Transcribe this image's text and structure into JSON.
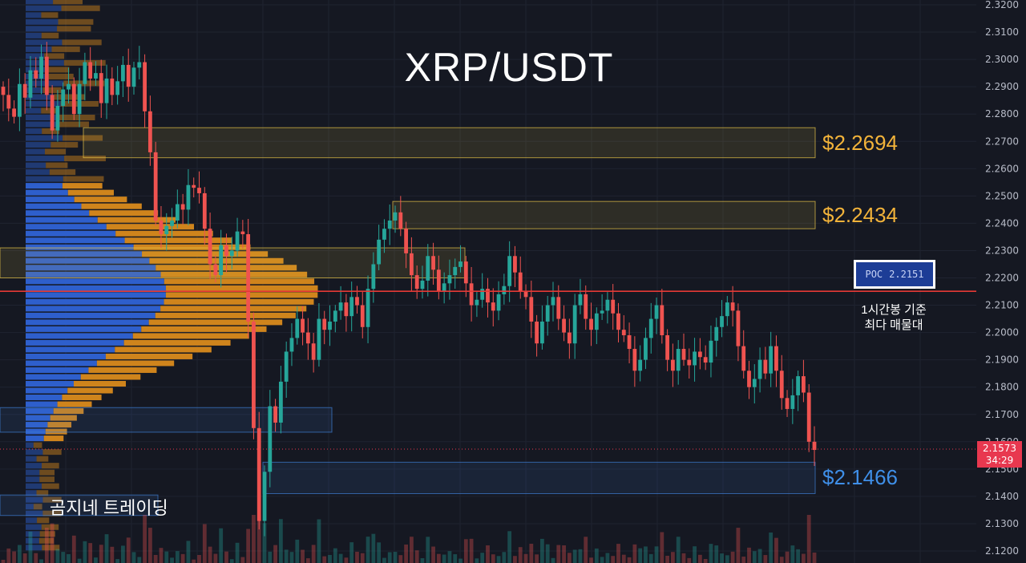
{
  "title": "XRP/USDT",
  "watermark": "곰지네 트레이딩",
  "levels": {
    "upper_resistance": "$2.2694",
    "mid_resistance": "$2.2434",
    "support": "$2.1466"
  },
  "poc": {
    "label": "POC",
    "value": "2.2151",
    "note_line1": "1시간봉 기준",
    "note_line2": "최다 매물대"
  },
  "current_price": {
    "value": "2.1573",
    "countdown": "34:29"
  },
  "colors": {
    "up": "#26a69a",
    "down": "#ef5350",
    "poc_line": "#e53935",
    "yellow_zone": "#e8c547",
    "blue_zone": "#3f7fd6",
    "vp_blue": "#2f63d6",
    "vp_orange": "#d98a1c"
  },
  "chart_data": {
    "type": "candlestick",
    "y_axis_ticks": [
      "2.3200",
      "2.3100",
      "2.3000",
      "2.2900",
      "2.2800",
      "2.2700",
      "2.2600",
      "2.2500",
      "2.2400",
      "2.2300",
      "2.2200",
      "2.2100",
      "2.2000",
      "2.1900",
      "2.1800",
      "2.1700",
      "2.1600",
      "2.1500",
      "2.1400",
      "2.1300",
      "2.1200"
    ],
    "ylim": [
      2.119,
      2.322
    ],
    "price_levels": [
      2.2694,
      2.2434,
      2.1466
    ],
    "poc": 2.2151,
    "last_price": 2.1573,
    "close_path": [
      2.287,
      2.282,
      2.279,
      2.291,
      2.286,
      2.296,
      2.293,
      2.301,
      2.287,
      2.274,
      2.283,
      2.289,
      2.291,
      2.28,
      2.291,
      2.299,
      2.293,
      2.295,
      2.284,
      2.293,
      2.287,
      2.292,
      2.298,
      2.29,
      2.297,
      2.299,
      2.281,
      2.266,
      2.241,
      2.236,
      2.239,
      2.241,
      2.247,
      2.245,
      2.254,
      2.253,
      2.251,
      2.238,
      2.225,
      2.221,
      2.232,
      2.228,
      2.23,
      2.237,
      2.236,
      2.204,
      2.165,
      2.131,
      2.149,
      2.173,
      2.167,
      2.182,
      2.193,
      2.198,
      2.205,
      2.2,
      2.196,
      2.19,
      2.205,
      2.201,
      2.204,
      2.208,
      2.211,
      2.206,
      2.213,
      2.21,
      2.202,
      2.216,
      2.225,
      2.234,
      2.238,
      2.241,
      2.244,
      2.238,
      2.229,
      2.221,
      2.216,
      2.219,
      2.228,
      2.223,
      2.215,
      2.218,
      2.221,
      2.224,
      2.226,
      2.218,
      2.21,
      2.212,
      2.216,
      2.211,
      2.208,
      2.214,
      2.217,
      2.228,
      2.222,
      2.215,
      2.213,
      2.204,
      2.196,
      2.204,
      2.21,
      2.213,
      2.205,
      2.2,
      2.196,
      2.21,
      2.214,
      2.205,
      2.201,
      2.207,
      2.208,
      2.212,
      2.207,
      2.201,
      2.199,
      2.194,
      2.186,
      2.19,
      2.198,
      2.205,
      2.21,
      2.199,
      2.19,
      2.186,
      2.194,
      2.19,
      2.188,
      2.193,
      2.191,
      2.189,
      2.197,
      2.202,
      2.206,
      2.211,
      2.208,
      2.195,
      2.186,
      2.18,
      2.183,
      2.19,
      2.185,
      2.195,
      2.186,
      2.176,
      2.172,
      2.177,
      2.184,
      2.178,
      2.16,
      2.157
    ]
  }
}
